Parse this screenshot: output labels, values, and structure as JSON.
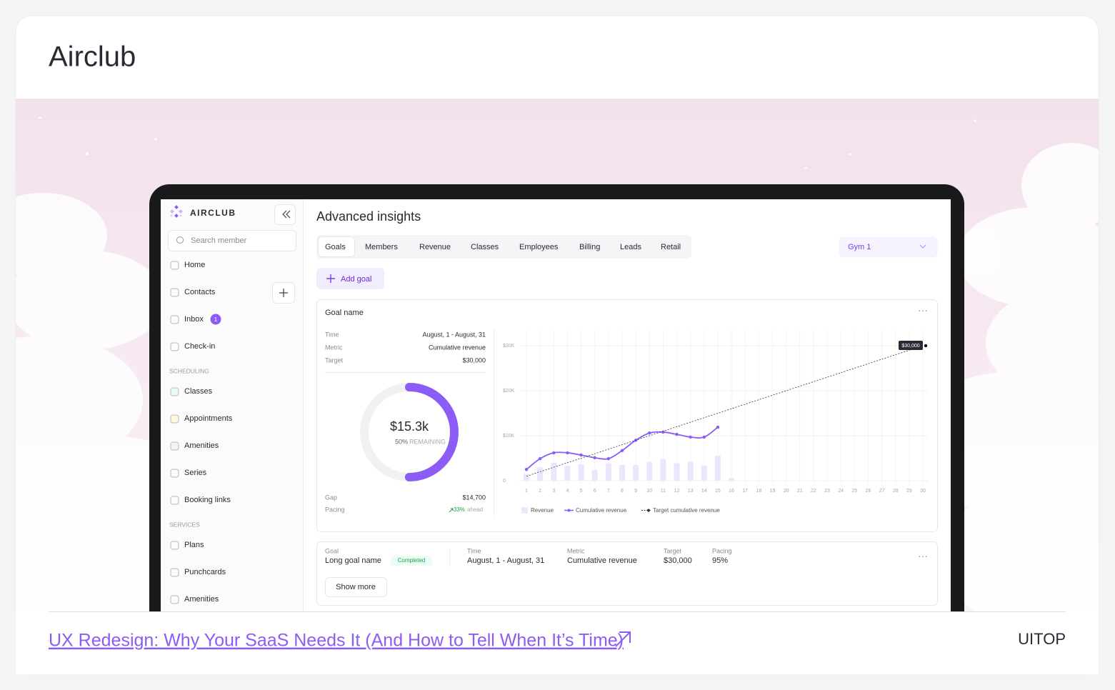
{
  "header": {
    "title": "Airclub"
  },
  "sidebar": {
    "logo": "AIRCLUB",
    "search": "Search member",
    "nav": [
      "Home",
      "Contacts",
      "Inbox",
      "Check-in"
    ],
    "inbox_badge": "1",
    "scheduling": {
      "heading": "SCHEDULING",
      "items": [
        "Classes",
        "Appointments",
        "Amenities",
        "Series",
        "Booking links"
      ]
    },
    "services": {
      "heading": "SERVICES",
      "items": [
        "Plans",
        "Punchcards",
        "Amenities"
      ]
    }
  },
  "main": {
    "title": "Advanced insights",
    "tabs": [
      "Goals",
      "Members",
      "Revenue",
      "Classes",
      "Employees",
      "Billing",
      "Leads",
      "Retail"
    ],
    "location": "Gym 1",
    "add_goal": "Add goal",
    "goal": {
      "name": "Goal name",
      "details": [
        {
          "label": "Time",
          "value": "August, 1 - August, 31"
        },
        {
          "label": "Metric",
          "value": "Cumulative revenue"
        },
        {
          "label": "Target",
          "value": "$30,000"
        }
      ],
      "donut": {
        "amount": "$15.3k",
        "percent": 50,
        "percent_label": "50%",
        "caption": "REMAINING"
      },
      "gap": {
        "label": "Gap",
        "value": "$14,700"
      },
      "pacing": {
        "label": "Pacing",
        "value": "33%",
        "note": "ahead"
      }
    },
    "goal_row": {
      "fields": [
        {
          "label": "Goal",
          "value": "Long goal name"
        },
        {
          "label": "Time",
          "value": "August, 1 - August, 31"
        },
        {
          "label": "Metric",
          "value": "Cumulative revenue"
        },
        {
          "label": "Target",
          "value": "$30,000"
        },
        {
          "label": "Pacing",
          "value": "95%"
        }
      ],
      "status": "Completed",
      "show_more": "Show more"
    }
  },
  "chart_data": {
    "type": "combo",
    "categories": [
      "1",
      "2",
      "3",
      "4",
      "5",
      "6",
      "7",
      "8",
      "9",
      "10",
      "11",
      "12",
      "13",
      "14",
      "15",
      "16",
      "17",
      "18",
      "19",
      "20",
      "21",
      "22",
      "23",
      "24",
      "25",
      "26",
      "27",
      "28",
      "29",
      "30"
    ],
    "ylim": [
      0,
      30000
    ],
    "yticks": [
      0,
      {
        "value": 10000,
        "label": "$10K"
      },
      {
        "value": 20000,
        "label": "$20K"
      },
      {
        "value": 30000,
        "label": "$30K"
      }
    ],
    "grid": true,
    "series": [
      {
        "name": "Revenue",
        "type": "bar",
        "color": "#ebe6fb",
        "values": [
          1500,
          3000,
          4000,
          3300,
          3700,
          2400,
          3900,
          3500,
          3500,
          4200,
          4800,
          3900,
          4300,
          3400,
          5600,
          600,
          null,
          null,
          null,
          null,
          null,
          null,
          null,
          null,
          null,
          null,
          null,
          null,
          null,
          null
        ]
      },
      {
        "name": "Cumulative revenue",
        "type": "line",
        "color": "#8b5cf6",
        "values": [
          2500,
          4900,
          6200,
          6200,
          5700,
          5100,
          4900,
          6700,
          9000,
          10600,
          10800,
          10300,
          9700,
          9700,
          11900,
          null,
          null,
          null,
          null,
          null,
          null,
          null,
          null,
          null,
          null,
          null,
          null,
          null,
          null,
          null
        ]
      },
      {
        "name": "Target cumulative revenue",
        "type": "line",
        "dashed": true,
        "color": "#333340",
        "values": [
          1000,
          2000,
          3000,
          4000,
          5000,
          6000,
          7000,
          8000,
          9000,
          10000,
          11000,
          12000,
          13000,
          14000,
          15000,
          16000,
          17000,
          18000,
          19000,
          20000,
          21000,
          22000,
          23000,
          24000,
          25000,
          26000,
          27000,
          28000,
          29000,
          30000
        ],
        "value_labels": [
          null,
          null,
          null,
          null,
          null,
          null,
          null,
          null,
          null,
          null,
          null,
          null,
          null,
          null,
          null,
          null,
          null,
          null,
          null,
          null,
          null,
          null,
          null,
          null,
          null,
          null,
          null,
          null,
          null,
          "$30,000"
        ]
      }
    ]
  },
  "footer": {
    "link": "UX Redesign: Why Your SaaS Needs It (And How to Tell When It’s Time)",
    "brand": "UITOP"
  }
}
